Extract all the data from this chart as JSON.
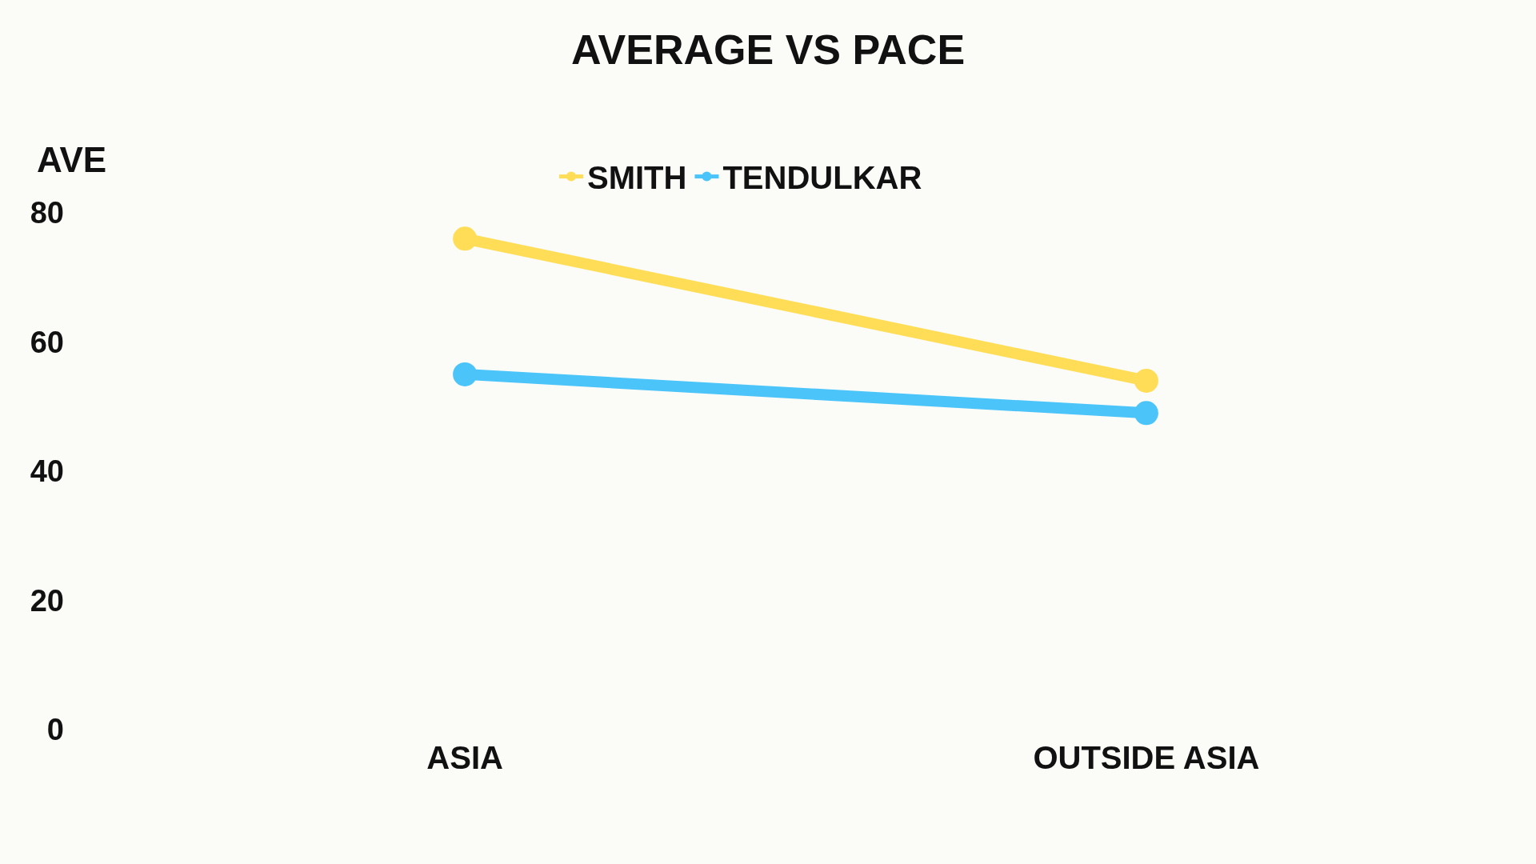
{
  "chart_data": {
    "type": "line",
    "title": "AVERAGE VS PACE",
    "ylabel": "AVE",
    "categories": [
      "ASIA",
      "OUTSIDE ASIA"
    ],
    "series": [
      {
        "name": "SMITH",
        "color": "#ffdd57",
        "values": [
          76,
          54
        ]
      },
      {
        "name": "TENDULKAR",
        "color": "#4bc4fa",
        "values": [
          55,
          49
        ]
      }
    ],
    "ylim": [
      0,
      80
    ],
    "yticks": [
      0,
      20,
      40,
      60,
      80
    ],
    "grid": false,
    "legend": "top",
    "marker": "circle",
    "line_style": "solid"
  }
}
